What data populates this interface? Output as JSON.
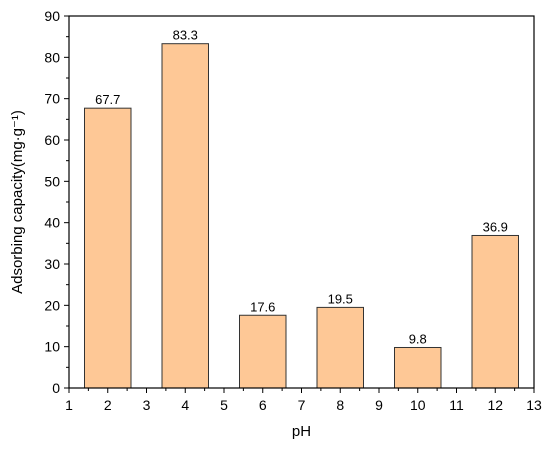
{
  "chart_data": {
    "type": "bar",
    "x": [
      2,
      4,
      6,
      8,
      10,
      12
    ],
    "values": [
      67.7,
      83.3,
      17.6,
      19.5,
      9.8,
      36.9
    ],
    "data_labels": [
      "67.7",
      "83.3",
      "17.6",
      "19.5",
      "9.8",
      "36.9"
    ],
    "xlabel": "pH",
    "ylabel": "Adsorbing capacity(mg·g⁻¹)",
    "xlim": [
      1,
      13
    ],
    "ylim": [
      0,
      90
    ],
    "x_ticks": [
      1,
      2,
      3,
      4,
      5,
      6,
      7,
      8,
      9,
      10,
      11,
      12,
      13
    ],
    "y_ticks": [
      0,
      10,
      20,
      30,
      40,
      50,
      60,
      70,
      80,
      90
    ],
    "bar_width": 1.2,
    "grid": false,
    "legend": "none",
    "colors": {
      "bar_fill": "#fec896",
      "bar_stroke": "#333333",
      "axis": "#000000"
    }
  }
}
